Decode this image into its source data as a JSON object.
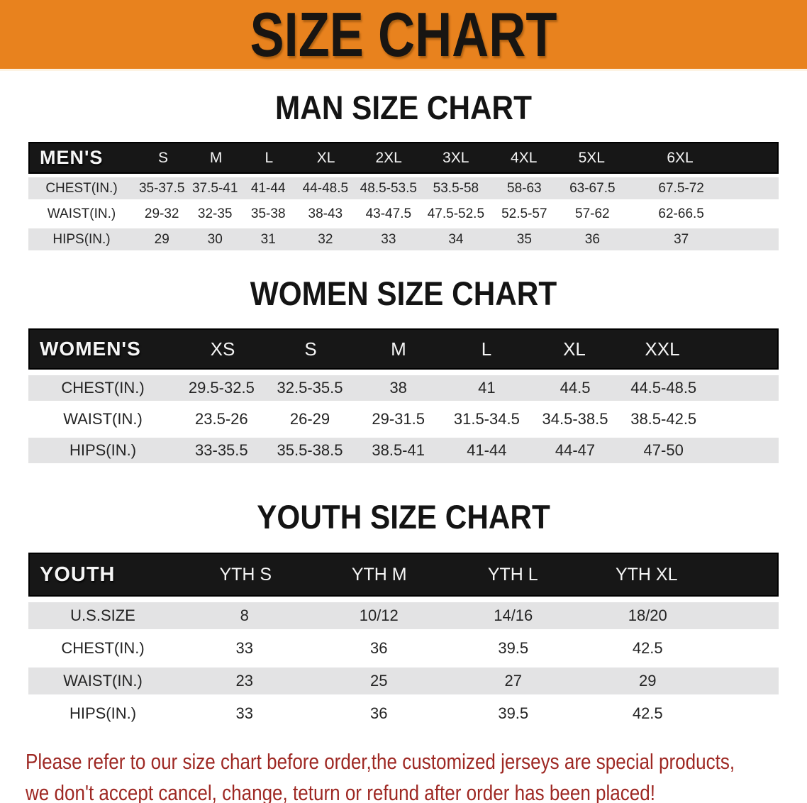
{
  "banner": {
    "title": "SIZE CHART"
  },
  "sections": [
    {
      "heading": "MAN SIZE CHART",
      "table": {
        "header": [
          "MEN'S",
          "S",
          "M",
          "L",
          "XL",
          "2XL",
          "3XL",
          "4XL",
          "5XL",
          "6XL"
        ],
        "rows": [
          [
            "CHEST(IN.)",
            "35-37.5",
            "37.5-41",
            "41-44",
            "44-48.5",
            "48.5-53.5",
            "53.5-58",
            "58-63",
            "63-67.5",
            "67.5-72"
          ],
          [
            "WAIST(IN.)",
            "29-32",
            "32-35",
            "35-38",
            "38-43",
            "43-47.5",
            "47.5-52.5",
            "52.5-57",
            "57-62",
            "62-66.5"
          ],
          [
            "HIPS(IN.)",
            "29",
            "30",
            "31",
            "32",
            "33",
            "34",
            "35",
            "36",
            "37"
          ]
        ]
      }
    },
    {
      "heading": "WOMEN SIZE CHART",
      "table": {
        "header": [
          "WOMEN'S",
          "XS",
          "S",
          "M",
          "L",
          "XL",
          "XXL"
        ],
        "rows": [
          [
            "CHEST(IN.)",
            "29.5-32.5",
            "32.5-35.5",
            "38",
            "41",
            "44.5",
            "44.5-48.5"
          ],
          [
            "WAIST(IN.)",
            "23.5-26",
            "26-29",
            "29-31.5",
            "31.5-34.5",
            "34.5-38.5",
            "38.5-42.5"
          ],
          [
            "HIPS(IN.)",
            "33-35.5",
            "35.5-38.5",
            "38.5-41",
            "41-44",
            "44-47",
            "47-50"
          ]
        ]
      }
    },
    {
      "heading": "YOUTH SIZE CHART",
      "table": {
        "header": [
          "YOUTH",
          "YTH S",
          "YTH M",
          "YTH L",
          "YTH XL"
        ],
        "rows": [
          [
            "U.S.SIZE",
            "8",
            "10/12",
            "14/16",
            "18/20"
          ],
          [
            "CHEST(IN.)",
            "33",
            "36",
            "39.5",
            "42.5"
          ],
          [
            "WAIST(IN.)",
            "23",
            "25",
            "27",
            "29"
          ],
          [
            "HIPS(IN.)",
            "33",
            "36",
            "39.5",
            "42.5"
          ]
        ]
      }
    }
  ],
  "disclaimer": {
    "lines": [
      "Please refer to our size chart before order,the customized jerseys are special products,",
      "we don't accept cancel, change, teturn or refund after order has been placed!"
    ]
  },
  "colors": {
    "banner-orange": "#E8821E",
    "header-black": "#171717",
    "row-gray": "#E3E3E4",
    "disclaimer-red": "#9E2823"
  }
}
